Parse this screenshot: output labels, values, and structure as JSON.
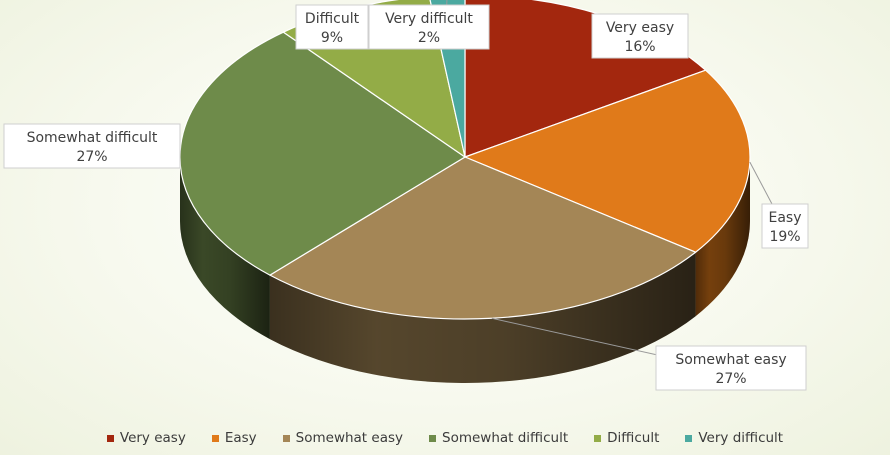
{
  "chart_data": {
    "type": "pie",
    "style": "3d",
    "legend_position": "bottom",
    "categories": [
      "Very easy",
      "Easy",
      "Somewhat easy",
      "Somewhat difficult",
      "Difficult",
      "Very difficult"
    ],
    "values": [
      16,
      19,
      27,
      27,
      9,
      2
    ],
    "data_labels": [
      "16%",
      "19%",
      "27%",
      "27%",
      "9%",
      "2%"
    ],
    "colors": [
      "#a3270e",
      "#e07a1a",
      "#a48656",
      "#6e8b4a",
      "#93ac47",
      "#4ba9a0"
    ]
  }
}
